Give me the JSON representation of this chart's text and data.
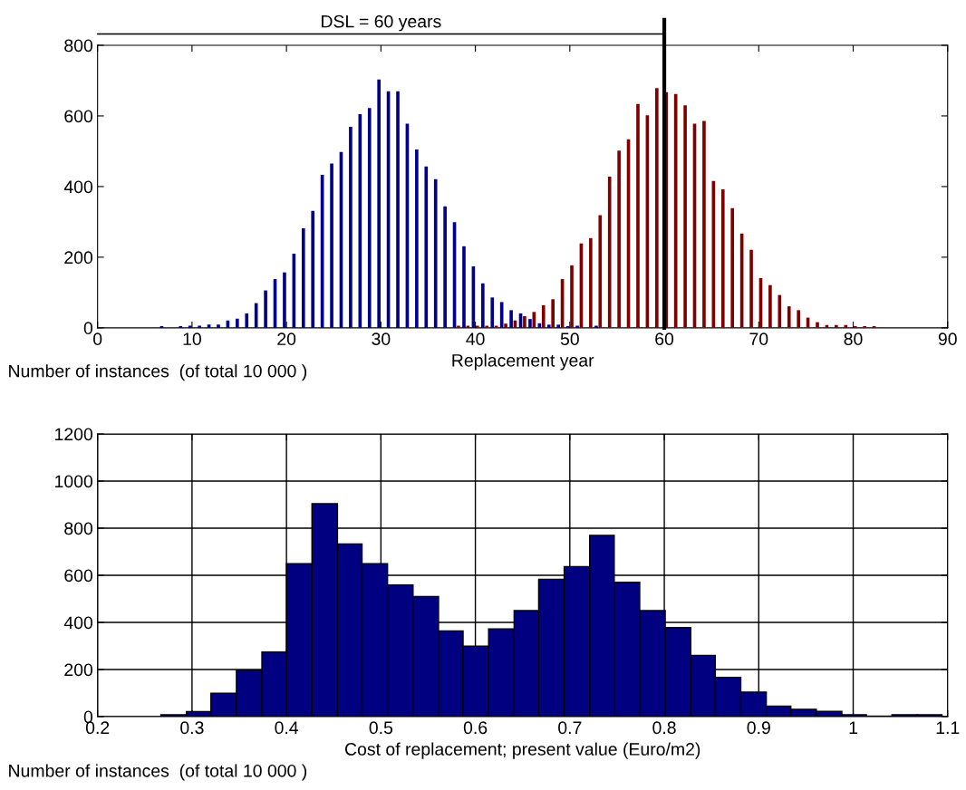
{
  "chart_data": [
    {
      "type": "bar",
      "xlabel": "Replacement year",
      "annotations": [
        "Number of instances  (of total 10 000 )"
      ],
      "x": [
        0,
        1,
        2,
        3,
        4,
        5,
        6,
        7,
        8,
        9,
        10,
        11,
        12,
        13,
        14,
        15,
        16,
        17,
        18,
        19,
        20,
        21,
        22,
        23,
        24,
        25,
        26,
        27,
        28,
        29,
        30,
        31,
        32,
        33,
        34,
        35,
        36,
        37,
        38,
        39,
        40,
        41,
        42,
        43,
        44,
        45,
        46,
        47,
        48,
        49,
        50,
        51,
        52,
        53,
        54,
        55,
        56,
        57,
        58,
        59,
        60,
        61,
        62,
        63,
        64,
        65,
        66,
        67,
        68,
        69,
        70,
        71,
        72,
        73,
        74,
        75,
        76,
        77,
        78,
        79,
        80,
        81,
        82,
        83,
        84,
        85,
        86,
        87,
        88,
        89,
        90
      ],
      "series": [
        {
          "color": "#00008b",
          "values": [
            0,
            0,
            0,
            0,
            0,
            0,
            0,
            5,
            0,
            5,
            6,
            6,
            9,
            9,
            21,
            26,
            41,
            70,
            106,
            138,
            157,
            210,
            282,
            331,
            433,
            465,
            498,
            569,
            605,
            622,
            703,
            670,
            670,
            578,
            505,
            457,
            421,
            344,
            299,
            231,
            174,
            126,
            86,
            73,
            50,
            41,
            25,
            13,
            9,
            9,
            5,
            6,
            0,
            6,
            0,
            0,
            0,
            0,
            0,
            0,
            0,
            0,
            0,
            0,
            0,
            0,
            0,
            0,
            0,
            0,
            0,
            0,
            0,
            0,
            0,
            0,
            0,
            0,
            0,
            0,
            0,
            0,
            0,
            0,
            0,
            0,
            0,
            0,
            0,
            0,
            0
          ]
        },
        {
          "color": "#800000",
          "values": [
            0,
            0,
            0,
            0,
            0,
            0,
            0,
            0,
            0,
            0,
            0,
            0,
            0,
            0,
            0,
            0,
            0,
            0,
            0,
            0,
            0,
            0,
            0,
            0,
            0,
            0,
            0,
            0,
            0,
            0,
            0,
            0,
            0,
            0,
            0,
            0,
            0,
            0,
            6,
            6,
            6,
            6,
            6,
            12,
            21,
            33,
            45,
            64,
            81,
            138,
            177,
            239,
            254,
            319,
            428,
            502,
            534,
            634,
            602,
            679,
            667,
            662,
            630,
            578,
            586,
            416,
            392,
            339,
            267,
            221,
            141,
            121,
            93,
            61,
            50,
            29,
            16,
            8,
            8,
            8,
            5,
            5,
            5,
            0,
            0,
            0,
            0,
            0,
            0,
            0,
            0
          ]
        }
      ],
      "xlim": [
        0,
        90
      ],
      "xticks": [
        0,
        10,
        20,
        30,
        40,
        50,
        60,
        70,
        80,
        90
      ],
      "ylim": [
        0,
        800
      ],
      "yticks": [
        0,
        200,
        400,
        600,
        800
      ],
      "ref_lines": [
        {
          "axis": "x",
          "value": 60,
          "label": "DSL = 60 years",
          "color": "#000000"
        }
      ],
      "grid": false
    },
    {
      "type": "histogram",
      "xlabel": "Cost of replacement; present value (Euro/m2)",
      "annotations": [
        "Number of instances  (of total 10 000 )"
      ],
      "bins": [
        0.267,
        0.294,
        0.32,
        0.347,
        0.374,
        0.4,
        0.427,
        0.454,
        0.48,
        0.507,
        0.534,
        0.561,
        0.587,
        0.614,
        0.641,
        0.667,
        0.694,
        0.721,
        0.747,
        0.774,
        0.801,
        0.828,
        0.854,
        0.881,
        0.908,
        0.934,
        0.961,
        0.988,
        1.014,
        1.041,
        1.068,
        1.094
      ],
      "values": [
        8,
        21,
        99,
        196,
        274,
        649,
        904,
        733,
        649,
        559,
        510,
        364,
        299,
        372,
        450,
        583,
        637,
        769,
        570,
        450,
        378,
        260,
        167,
        104,
        44,
        31,
        22,
        8,
        2,
        8,
        8
      ],
      "color": "#000080",
      "xlim": [
        0.2,
        1.1
      ],
      "xticks": [
        0.2,
        0.3,
        0.4,
        0.5,
        0.6,
        0.7,
        0.8,
        0.9,
        1,
        1.1
      ],
      "ylim": [
        0,
        1200
      ],
      "yticks": [
        0,
        200,
        400,
        600,
        800,
        1000,
        1200
      ],
      "grid": true
    }
  ]
}
